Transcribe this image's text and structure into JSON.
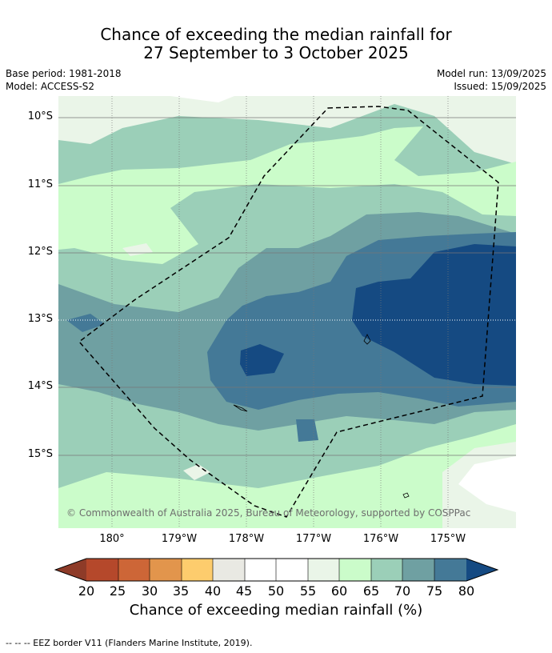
{
  "title": {
    "line1": "Chance of exceeding the median rainfall for",
    "line2": "27 September to 3 October 2025"
  },
  "meta": {
    "base_period": "Base period: 1981-2018",
    "model": "Model: ACCESS-S2",
    "model_run": "Model run: 13/09/2025",
    "issued": "Issued: 15/09/2025"
  },
  "map": {
    "lat_labels": [
      "10°S",
      "11°S",
      "12°S",
      "13°S",
      "14°S",
      "15°S"
    ],
    "lon_labels": [
      "180°",
      "179°W",
      "178°W",
      "177°W",
      "176°W",
      "175°W"
    ],
    "copyright": "© Commonwealth of Australia 2025, Bureau of Meteorology, supported by COSPPac",
    "eez_line_color": "#000000"
  },
  "colorbar": {
    "ticks": [
      "20",
      "25",
      "30",
      "35",
      "40",
      "45",
      "50",
      "55",
      "60",
      "65",
      "70",
      "75",
      "80"
    ],
    "colors": {
      "below_20": "#8e3b28",
      "20_25": "#b5482b",
      "25_30": "#cd6637",
      "30_35": "#e2954c",
      "35_40": "#fdcc6d",
      "40_45": "#e9e9e3",
      "45_55": "#ffffff",
      "55_60": "#eaf5e8",
      "60_65": "#cbfcca",
      "65_70": "#9bcfb8",
      "70_75": "#6fa0a2",
      "75_80": "#447997",
      "above_80": "#154a82"
    },
    "label": "Chance of exceeding median rainfall (%)"
  },
  "footnote": "--  --  -- EEZ border V11 (Flanders Marine Institute, 2019)."
}
